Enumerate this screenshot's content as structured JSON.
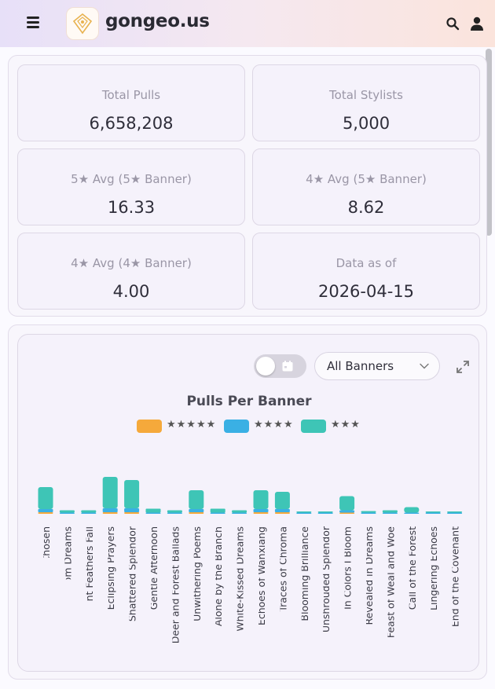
{
  "header": {
    "brand": "gongeo.us",
    "menu_icon": "hamburger-menu-icon",
    "search_icon": "search-icon",
    "user_icon": "user-icon"
  },
  "stats": [
    {
      "label": "Total Pulls",
      "value": "6,658,208"
    },
    {
      "label": "Total Stylists",
      "value": "5,000"
    },
    {
      "label": "5★ Avg (5★ Banner)",
      "value": "16.33"
    },
    {
      "label": "4★ Avg (5★ Banner)",
      "value": "8.62"
    },
    {
      "label": "4★ Avg (4★ Banner)",
      "value": "4.00"
    },
    {
      "label": "Data as of",
      "value": "2026-04-15"
    }
  ],
  "controls": {
    "banner_filter": "All Banners",
    "toggle_icon": "calendar-icon",
    "expand_icon": "expand-icon"
  },
  "chart_data": {
    "type": "bar",
    "stacked": true,
    "title": "Pulls Per Banner",
    "legend_position": "top",
    "categories": [
      "The Path That Is Chosen",
      "Mushroom Dreams",
      "Where Verdant Feathers Fall",
      "Eclipsing Prayers",
      "Shattered Splendor",
      "Gentle Afternoon",
      "Deer and Forest Ballads",
      "Unwithering Poems",
      "Alone by the Branch",
      "White-Kissed Dreams",
      "Echoes of Wanxiang",
      "Traces of Chroma",
      "Blooming Brilliance",
      "Unshrouded Splendor",
      "In Colors I Bloom",
      "Revealed in Dreams",
      "Feast of Weal and Woe",
      "Call of the Forest",
      "Lingering Echoes",
      "End of the Covenant"
    ],
    "series": [
      {
        "name": "★★★★★",
        "color": "#f5a93b",
        "values": [
          2,
          0,
          0,
          2,
          2,
          0,
          0,
          2,
          0,
          0,
          2,
          2,
          0,
          0,
          1,
          0,
          0,
          0,
          0,
          0
        ]
      },
      {
        "name": "★★★★",
        "color": "#3ab0e4",
        "values": [
          4,
          1,
          1,
          5,
          5,
          1,
          1,
          4,
          1,
          1,
          4,
          4,
          0.5,
          0.5,
          3,
          1,
          1,
          1,
          0.5,
          0.5
        ]
      },
      {
        "name": "★★★",
        "color": "#3ec5b6",
        "values": [
          28,
          3,
          3,
          40,
          36,
          5,
          3,
          24,
          5,
          3,
          24,
          22,
          1,
          1,
          18,
          2,
          3,
          7,
          1,
          1
        ]
      }
    ],
    "grid": false
  }
}
